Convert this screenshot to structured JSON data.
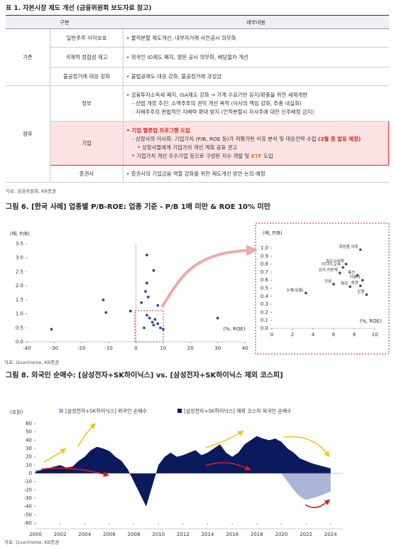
{
  "table": {
    "title": "표 1. 자본시장 제도 개선 (금융위원회 보도자료 참고)",
    "headers": [
      "구분",
      "세부내용"
    ],
    "groups": [
      {
        "label": "기존",
        "rows": [
          {
            "item": "일반주주 이익보호",
            "details": [
              "• 물적분할 제도개선, 내부자거래 사전공시 의무화"
            ]
          },
          {
            "item": "국제적 정합성 제고",
            "details": [
              "• 외국인 ID제도 폐지, 영문 공시 의무화, 배당절차 개선"
            ]
          },
          {
            "item": "불공정거래 대응 강화",
            "details": [
              "• 불법공매도 대응 강화, 불공정거래 과징금"
            ]
          }
        ]
      },
      {
        "label": "향후",
        "rows": [
          {
            "item": "정부",
            "details": [
              "• 금융투자소득세 폐지, ISA제도 강화 → 가계 수요기반 유지/확충을 위한 세제개편",
              "- 상법 개정 추진: 소액주주의 권익 개선 목적 (이사의 책임 강화, 주총 내실화)",
              "- 지배주주의 편법적인 지배력 확대 방지 (인적분할시 자사주에 대한 신주배정 금지)"
            ]
          },
          {
            "item": "기업",
            "highlight": true,
            "details": [
              "• 기업 밸류업 프로그램 도입",
              [
                "- 상장사의 이사회: 기업가치 (P/B, ROE 등)가 저평가된 이유 분석 및 대응전략 수립 ",
                "(2월 중 발표 예정)"
              ],
              "* 상장사들에게 기업가치 개선 계획 공표 권고",
              [
                "* 기업가치 개선 우수기업 등으로 구성된 지수 개발 및 ",
                "ETF",
                " 도입"
              ]
            ]
          },
          {
            "item": "증권사",
            "details": [
              "• 증권사의 기업금융 역할 강화를 위한 제도개선 방안 논의 예정"
            ]
          }
        ]
      }
    ],
    "source": "자료: 금융위원회, KB증권"
  },
  "chart_data": [
    {
      "type": "scatter",
      "title": "그림 6. [한국 사례] 업종별 P/B-ROE: 업종 기준 - P/B 1배 미만 & ROE 10% 미만",
      "y_label": "(배, P/B)",
      "x_label": "(%, ROE)",
      "color": "#2c4b8e",
      "x": [
        -31,
        -12,
        -11,
        -2,
        4,
        6.5,
        4,
        3.5,
        2,
        4.5,
        8,
        3,
        6,
        7,
        8,
        9,
        5,
        6.5,
        10,
        30,
        4
      ],
      "y": [
        0.45,
        1.5,
        1.05,
        1.1,
        3.1,
        2.55,
        2.1,
        1.8,
        1.4,
        1.6,
        1.3,
        0.5,
        0.7,
        0.8,
        0.65,
        0.5,
        0.85,
        0.6,
        0.45,
        0.85,
        0.95
      ],
      "xlim": [
        -40,
        40
      ],
      "xticks": [
        -40,
        -30,
        -20,
        -10,
        0,
        10,
        20,
        30,
        40
      ],
      "ylim": [
        0,
        3.5
      ],
      "yticks": [
        {
          "value": 0,
          "label": "0.0"
        },
        0.5,
        {
          "value": 1,
          "label": "1.0"
        },
        1.5,
        {
          "value": 2,
          "label": "2.0"
        },
        2.5,
        {
          "value": 3,
          "label": "3.0"
        },
        3.5
      ],
      "source": "자료: Quantiwise, KB증권"
    },
    {
      "type": "scatter",
      "y_label": "(배, P/B)",
      "x_label": "(%, ROE)",
      "color": "#2c4b8e",
      "categories": [
        "화장품,의류",
        "필수소비재",
        "미디어,교육",
        "상사,자본재",
        "통신",
        "자동차",
        "건설",
        "철강",
        "증권",
        "은행",
        "소매(유통)"
      ],
      "x": [
        8.6,
        7.2,
        6.9,
        6.6,
        8.3,
        8.8,
        6.0,
        7.6,
        8.6,
        9.2,
        3.3
      ],
      "y": [
        0.98,
        0.8,
        0.76,
        0.69,
        0.66,
        0.6,
        0.55,
        0.52,
        0.53,
        0.42,
        0.44
      ],
      "xlim": [
        0,
        10
      ],
      "xticks": [
        0,
        2,
        4,
        6,
        8,
        10
      ],
      "ylim": [
        0,
        1
      ],
      "yticks": [
        {
          "value": 0,
          "label": "0.0"
        },
        0.1,
        0.2,
        0.3,
        0.4,
        0.5,
        0.6,
        0.7,
        0.8,
        0.9,
        {
          "value": 1,
          "label": "1.0"
        }
      ]
    },
    {
      "type": "area",
      "title": "그림 8. 외국인 순매수: [삼성전자+SK하이닉스] vs. [삼성전자+SK하이닉스 제외 코스피]",
      "y_label": "(조원)",
      "x": [
        2000,
        2000.5,
        2001,
        2001.5,
        2002,
        2002.5,
        2003,
        2003.5,
        2004,
        2004.5,
        2005,
        2005.5,
        2006,
        2006.5,
        2007,
        2007.5,
        2008,
        2008.5,
        2009,
        2009.5,
        2010,
        2010.5,
        2011,
        2011.5,
        2012,
        2012.5,
        2013,
        2013.5,
        2014,
        2014.5,
        2015,
        2015.5,
        2016,
        2016.5,
        2017,
        2017.5,
        2018,
        2018.5,
        2019,
        2019.5,
        2020,
        2020.5,
        2021,
        2021.5,
        2022,
        2022.5,
        2023,
        2023.5,
        2024
      ],
      "series": [
        {
          "name": "[삼성전자+SK하이닉스] 외국인 순매수",
          "color": "#aab5d8",
          "values": [
            4,
            5,
            6,
            7,
            8,
            7,
            8,
            9,
            10,
            10,
            9,
            8,
            6,
            5,
            3,
            0,
            -3,
            -5,
            -6,
            -3,
            0,
            2,
            5,
            6,
            8,
            10,
            12,
            12,
            13,
            14,
            15,
            14,
            13,
            14,
            15,
            14,
            12,
            10,
            8,
            5,
            0,
            -10,
            -20,
            -28,
            -32,
            -30,
            -28,
            -25,
            -22
          ]
        },
        {
          "name": "[삼성전자+SK하이닉스] 제외 코스피 외국인 순매수",
          "color": "#0b1a5c",
          "values": [
            2,
            4,
            6,
            8,
            10,
            7,
            8,
            15,
            20,
            28,
            32,
            30,
            27,
            20,
            15,
            5,
            -10,
            -25,
            -40,
            -15,
            10,
            20,
            25,
            20,
            22,
            25,
            28,
            22,
            25,
            30,
            35,
            25,
            20,
            25,
            35,
            40,
            45,
            42,
            40,
            42,
            38,
            30,
            25,
            18,
            15,
            12,
            10,
            8,
            6
          ]
        }
      ],
      "xlim": [
        2000,
        2025
      ],
      "xticks": [
        2000,
        2002,
        2004,
        2006,
        2008,
        2010,
        2012,
        2014,
        2016,
        2018,
        2020,
        2022,
        2024
      ],
      "ylim": [
        -60,
        60
      ],
      "yticks": [
        -60,
        -50,
        -40,
        -30,
        -20,
        -10,
        0,
        10,
        20,
        30,
        40,
        50,
        60
      ],
      "source": "자료: Quantiwise, KB증권"
    }
  ]
}
